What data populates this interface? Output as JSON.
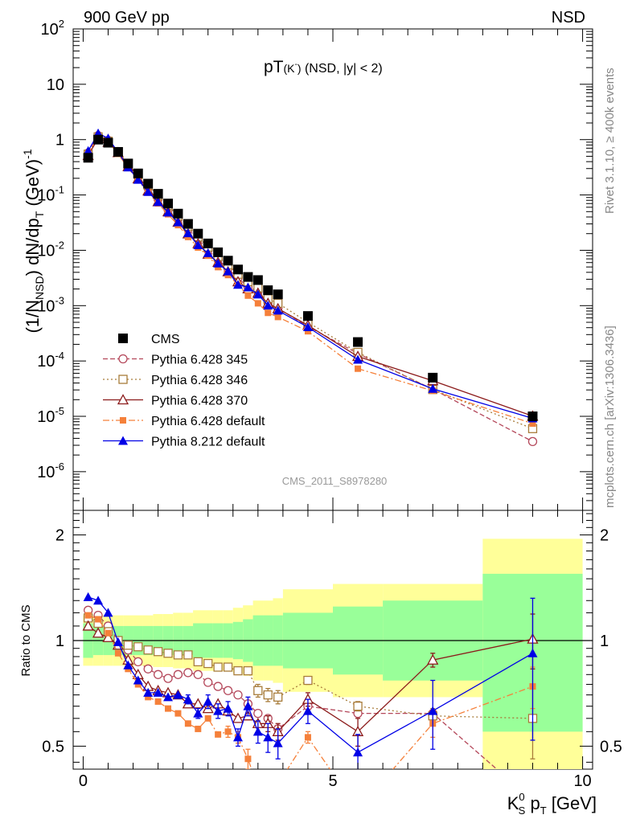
{
  "header": {
    "left": "900 GeV pp",
    "right": "NSD"
  },
  "plot_title": {
    "main": "pT",
    "particle": "(K",
    "particle_sup": "-",
    "particle_close": ")",
    "cuts": " (NSD, |y| < 2)"
  },
  "side_labels": {
    "rivet": "Rivet 3.1.10, ≥ 400k events",
    "mcplots": "mcplots.cern.ch [arXiv:1306.3436]"
  },
  "analysis_id": "CMS_2011_S8978280",
  "y_axis_top": {
    "p1": "(1/N",
    "p1_sub": "NSD",
    "p2": ") dN/dp",
    "p2_sub": "T",
    "p3": " (GeV)",
    "p3_sup": "-1"
  },
  "y_axis_bottom": "Ratio to CMS",
  "x_axis": {
    "p1": "K",
    "p1_sup": "0",
    "p1_sub": "S",
    "p2": " p",
    "p2_sub": "T",
    "p3": " [GeV]"
  },
  "x_ticks": [
    "0",
    "5",
    "10"
  ],
  "top_ticks": [
    {
      "b": "10",
      "e": "2"
    },
    {
      "b": "10",
      "e": ""
    },
    {
      "b": "1",
      "e": ""
    },
    {
      "b": "10",
      "e": "-1"
    },
    {
      "b": "10",
      "e": "-2"
    },
    {
      "b": "10",
      "e": "-3"
    },
    {
      "b": "10",
      "e": "-4"
    },
    {
      "b": "10",
      "e": "-5"
    },
    {
      "b": "10",
      "e": "-6"
    }
  ],
  "ratio_ticks_left": [
    "2",
    "1",
    "0.5"
  ],
  "ratio_ticks_right": [
    "2",
    "1",
    "0.5"
  ],
  "legend": [
    {
      "label": "CMS"
    },
    {
      "label": "Pythia 6.428 345"
    },
    {
      "label": "Pythia 6.428 346"
    },
    {
      "label": "Pythia 6.428 370"
    },
    {
      "label": "Pythia 6.428 default"
    },
    {
      "label": "Pythia 8.212 default"
    }
  ],
  "colors": {
    "cms": "#000000",
    "p345": "#b4475a",
    "p346": "#a87c3a",
    "p370": "#8b1a1a",
    "pdef": "#f5803a",
    "p8": "#0000e6",
    "band_yellow": "#ffff99",
    "band_green": "#99ff99"
  },
  "chart_data": {
    "type": "scatter",
    "title": "pT(K^-) (NSD, |y| < 2)",
    "xlabel": "K0S pT [GeV]",
    "ylabel": "(1/N_NSD) dN/dpT (GeV)^-1",
    "xlim": [
      -0.2,
      10.2
    ],
    "ylim": [
      2e-07,
      100
    ],
    "yscale": "log",
    "ratio_ylim": [
      0.43,
      2.35
    ],
    "ratio_yscale": "log",
    "x": [
      0.1,
      0.3,
      0.5,
      0.7,
      0.9,
      1.1,
      1.3,
      1.5,
      1.7,
      1.9,
      2.1,
      2.3,
      2.5,
      2.7,
      2.9,
      3.1,
      3.3,
      3.5,
      3.7,
      3.9,
      4.5,
      5.5,
      7.0,
      9.0
    ],
    "x_edges": [
      0,
      0.2,
      0.4,
      0.6,
      0.8,
      1.0,
      1.2,
      1.4,
      1.6,
      1.8,
      2.0,
      2.2,
      2.4,
      2.6,
      2.8,
      3.0,
      3.2,
      3.4,
      3.6,
      3.8,
      4.0,
      5.0,
      6.0,
      8.0,
      10.0
    ],
    "cms": [
      0.47,
      1.0,
      0.88,
      0.6,
      0.37,
      0.245,
      0.16,
      0.105,
      0.07,
      0.046,
      0.03,
      0.02,
      0.0133,
      0.0092,
      0.0065,
      0.0045,
      0.0033,
      0.0029,
      0.0019,
      0.0016,
      0.00065,
      0.00022,
      5e-05,
      1e-05
    ],
    "band_green": [
      1.12,
      1.1,
      1.1,
      1.1,
      1.1,
      1.1,
      1.1,
      1.1,
      1.1,
      1.1,
      1.1,
      1.12,
      1.12,
      1.12,
      1.12,
      1.13,
      1.15,
      1.18,
      1.18,
      1.18,
      1.2,
      1.25,
      1.3,
      1.55
    ],
    "band_yellow": [
      1.18,
      1.18,
      1.18,
      1.18,
      1.18,
      1.18,
      1.18,
      1.19,
      1.19,
      1.2,
      1.2,
      1.22,
      1.22,
      1.22,
      1.22,
      1.24,
      1.26,
      1.3,
      1.3,
      1.32,
      1.4,
      1.45,
      1.45,
      1.95
    ],
    "series": [
      {
        "name": "Pythia 6.428 345",
        "key": "p345",
        "marker": "circle",
        "dash": "6,3",
        "ratio": [
          1.22,
          1.18,
          1.1,
          1.0,
          0.94,
          0.87,
          0.83,
          0.8,
          0.78,
          0.8,
          0.81,
          0.8,
          0.76,
          0.74,
          0.72,
          0.7,
          0.66,
          0.62,
          0.6,
          0.56,
          0.65,
          0.62,
          0.62,
          0.35
        ],
        "err": [
          0,
          0,
          0,
          0,
          0,
          0,
          0,
          0,
          0,
          0,
          0,
          0,
          0,
          0,
          0,
          0,
          0,
          0,
          0,
          0,
          0,
          0,
          0,
          0.03
        ]
      },
      {
        "name": "Pythia 6.428 346",
        "key": "p346",
        "marker": "square",
        "dash": "2,3",
        "ratio": [
          1.16,
          1.12,
          1.06,
          1.0,
          0.97,
          0.96,
          0.94,
          0.93,
          0.92,
          0.91,
          0.91,
          0.87,
          0.86,
          0.84,
          0.84,
          0.82,
          0.82,
          0.72,
          0.7,
          0.69,
          0.77,
          0.65,
          0.61,
          0.6
        ],
        "err": [
          0,
          0,
          0,
          0,
          0,
          0,
          0,
          0,
          0,
          0,
          0,
          0,
          0,
          0,
          0,
          0,
          0,
          0.03,
          0.03,
          0.03,
          0.02,
          0.02,
          0.03,
          0.14
        ]
      },
      {
        "name": "Pythia 6.428 370",
        "key": "p370",
        "marker": "triangle-open",
        "dash": "",
        "ratio": [
          1.1,
          1.05,
          1.02,
          0.97,
          0.88,
          0.8,
          0.74,
          0.72,
          0.71,
          0.7,
          0.66,
          0.66,
          0.64,
          0.66,
          0.63,
          0.6,
          0.61,
          0.58,
          0.58,
          0.55,
          0.68,
          0.55,
          0.88,
          1.01
        ],
        "err": [
          0,
          0,
          0,
          0,
          0,
          0,
          0,
          0,
          0,
          0,
          0,
          0,
          0,
          0,
          0,
          0,
          0,
          0,
          0.03,
          0.03,
          0.03,
          0.05,
          0.04,
          0.18
        ]
      },
      {
        "name": "Pythia 6.428 default",
        "key": "pdef",
        "marker": "square-filled",
        "dash": "8,3,2,3",
        "ratio": [
          1.18,
          1.15,
          1.05,
          0.92,
          0.83,
          0.75,
          0.69,
          0.67,
          0.64,
          0.62,
          0.58,
          0.56,
          0.6,
          0.54,
          0.55,
          0.53,
          0.46,
          0.38,
          0.39,
          0.39,
          0.53,
          0.33,
          0.58,
          0.74
        ],
        "err": [
          0,
          0,
          0,
          0,
          0,
          0,
          0,
          0,
          0,
          0,
          0,
          0,
          0,
          0,
          0.02,
          0.02,
          0.03,
          0.02,
          0.02,
          0.02,
          0.02,
          0.04,
          0.05,
          0.1
        ]
      },
      {
        "name": "Pythia 8.212 default",
        "key": "p8",
        "marker": "triangle-filled",
        "dash": "",
        "ratio": [
          1.33,
          1.3,
          1.2,
          0.99,
          0.85,
          0.77,
          0.71,
          0.71,
          0.69,
          0.7,
          0.68,
          0.62,
          0.67,
          0.63,
          0.64,
          0.53,
          0.65,
          0.55,
          0.53,
          0.51,
          0.63,
          0.48,
          0.63,
          0.92
        ],
        "err": [
          0,
          0,
          0,
          0,
          0,
          0,
          0,
          0,
          0,
          0,
          0.02,
          0.02,
          0.03,
          0.03,
          0.03,
          0.03,
          0.04,
          0.04,
          0.05,
          0.05,
          0.05,
          0.06,
          0.14,
          0.4
        ]
      }
    ]
  }
}
